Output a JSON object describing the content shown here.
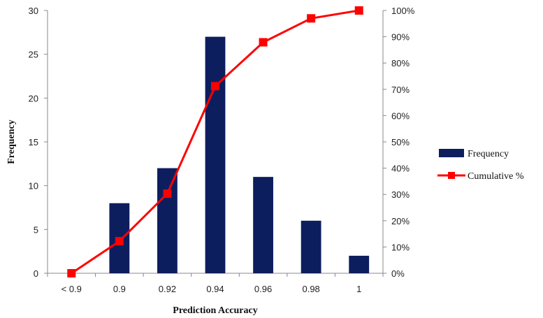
{
  "chart_data": {
    "type": "bar",
    "categories": [
      "< 0.9",
      "0.9",
      "0.92",
      "0.94",
      "0.96",
      "0.98",
      "1"
    ],
    "series": [
      {
        "name": "Frequency",
        "type": "bar",
        "axis": "left",
        "values": [
          0,
          8,
          12,
          27,
          11,
          6,
          2
        ]
      },
      {
        "name": "Cumulative %",
        "type": "line",
        "axis": "right",
        "values": [
          0,
          12.2,
          30.3,
          71.2,
          87.9,
          97.0,
          100
        ]
      }
    ],
    "xlabel": "Prediction Accuracy",
    "ylabel": "Frequency",
    "ylim": [
      0,
      30
    ],
    "yticks": [
      "0",
      "5",
      "10",
      "15",
      "20",
      "25",
      "30"
    ],
    "y2lim": [
      0,
      100
    ],
    "y2ticks": [
      "0%",
      "10%",
      "20%",
      "30%",
      "40%",
      "50%",
      "60%",
      "70%",
      "80%",
      "90%",
      "100%"
    ],
    "grid": false,
    "legend": "right",
    "colors": {
      "bar": "#0d1e5e",
      "line": "#ff0000",
      "axis": "#888888"
    }
  }
}
